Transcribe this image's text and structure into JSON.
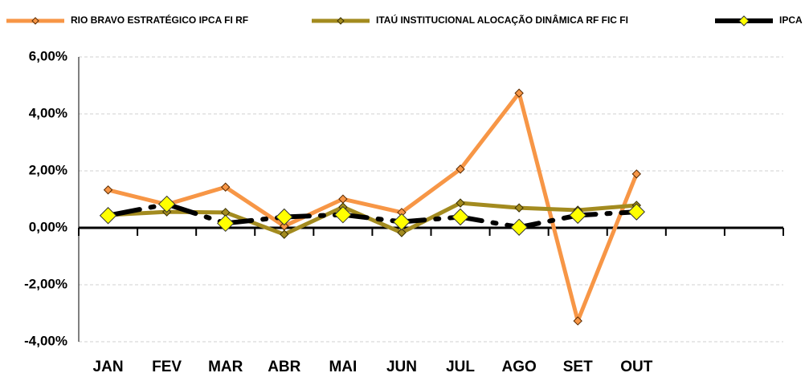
{
  "chart_data": {
    "type": "line",
    "categories": [
      "JAN",
      "FEV",
      "MAR",
      "ABR",
      "MAI",
      "JUN",
      "JUL",
      "AGO",
      "SET",
      "OUT",
      null,
      null
    ],
    "series": [
      {
        "name": "RIO BRAVO ESTRATÉGICO IPCA FI RF",
        "color": "#f79646",
        "values": [
          1.33,
          0.82,
          1.43,
          0.06,
          1.01,
          0.54,
          2.06,
          4.73,
          -3.27,
          1.89,
          null,
          null
        ]
      },
      {
        "name": "ITAÚ INSTITUCIONAL ALOCAÇÃO DINÂMICA RF FIC FI",
        "color": "#a38b1f",
        "values": [
          0.45,
          0.56,
          0.54,
          -0.23,
          0.73,
          -0.17,
          0.87,
          0.7,
          0.62,
          0.79,
          null,
          null
        ]
      },
      {
        "name": "IPCA",
        "color": "#000000",
        "values": [
          0.43,
          0.83,
          0.16,
          0.38,
          0.46,
          0.21,
          0.38,
          0.02,
          0.44,
          0.56,
          null,
          null
        ]
      }
    ],
    "ylim": [
      -4,
      6
    ],
    "yticks": [
      {
        "value": -4,
        "label": "-4,00%"
      },
      {
        "value": -2,
        "label": "-2,00%"
      },
      {
        "value": 0,
        "label": "0,00%"
      },
      {
        "value": 2,
        "label": "2,00%"
      },
      {
        "value": 4,
        "label": "4,00%"
      },
      {
        "value": 6,
        "label": "6,00%"
      }
    ],
    "grid": true,
    "legend": "top"
  }
}
